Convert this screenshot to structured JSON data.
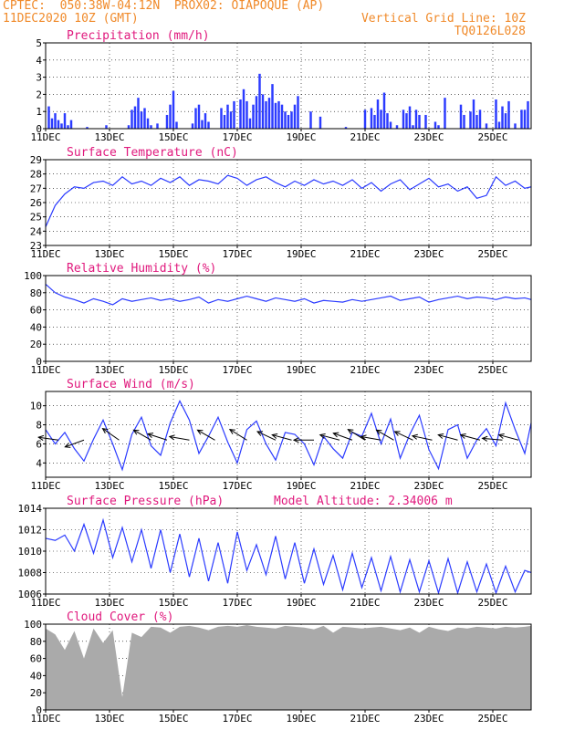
{
  "header": {
    "line1_left": "CPTEC:  050:38W-04:12N  PROX02: OIAPOQUE (AP)",
    "line2_left": "11DEC2020 10Z (GMT)",
    "line2_right": "Vertical Grid Line: 10Z",
    "line3_right": "TQ0126L028"
  },
  "colors": {
    "header": "#f08a2a",
    "titles": "#e0197d",
    "series": "#2b3bff",
    "precip_bars": "#2b3bff",
    "cloud_fill": "#aaaaaa",
    "arrows": "#000000"
  },
  "x_axis": {
    "labels": [
      "11DEC",
      "13DEC",
      "15DEC",
      "17DEC",
      "19DEC",
      "21DEC",
      "23DEC",
      "25DEC"
    ],
    "label_days": [
      0,
      2,
      4,
      6,
      8,
      10,
      12,
      14
    ],
    "range_days": [
      0,
      15.2
    ]
  },
  "chart_data": [
    {
      "type": "bar",
      "title": "Precipitation (mm/h)",
      "ylim": [
        0,
        5
      ],
      "yticks": [
        0,
        1,
        2,
        3,
        4,
        5
      ],
      "days": [
        0.1,
        0.2,
        0.3,
        0.4,
        0.5,
        0.6,
        0.7,
        0.8,
        1.3,
        1.9,
        2.6,
        2.7,
        2.8,
        2.9,
        3.0,
        3.1,
        3.2,
        3.3,
        3.5,
        3.8,
        3.9,
        4.0,
        4.1,
        4.6,
        4.7,
        4.8,
        4.9,
        5.0,
        5.1,
        5.5,
        5.6,
        5.7,
        5.8,
        5.9,
        6.1,
        6.2,
        6.3,
        6.4,
        6.5,
        6.6,
        6.7,
        6.8,
        6.9,
        7.0,
        7.1,
        7.2,
        7.3,
        7.4,
        7.5,
        7.6,
        7.7,
        7.8,
        7.9,
        8.3,
        8.6,
        9.4,
        10.0,
        10.2,
        10.3,
        10.4,
        10.5,
        10.6,
        10.7,
        10.8,
        11.0,
        11.2,
        11.3,
        11.4,
        11.5,
        11.6,
        11.7,
        11.9,
        12.2,
        12.3,
        12.5,
        13.0,
        13.1,
        13.3,
        13.4,
        13.5,
        13.6,
        13.8,
        14.1,
        14.2,
        14.3,
        14.4,
        14.5,
        14.7,
        14.9,
        15.0,
        15.1
      ],
      "values": [
        1.3,
        0.6,
        0.9,
        0.5,
        0.3,
        0.9,
        0.2,
        0.5,
        0.1,
        0.2,
        0.2,
        1.1,
        1.3,
        1.8,
        1.0,
        1.2,
        0.6,
        0.2,
        0.3,
        0.8,
        1.4,
        2.2,
        0.4,
        0.3,
        1.2,
        1.4,
        0.5,
        0.9,
        0.4,
        1.2,
        0.8,
        1.4,
        1.0,
        1.6,
        1.7,
        2.3,
        1.6,
        0.6,
        1.4,
        1.9,
        3.2,
        2.0,
        1.6,
        1.8,
        2.6,
        1.5,
        1.6,
        1.4,
        1.0,
        0.8,
        1.0,
        1.4,
        1.9,
        1.0,
        0.7,
        0.1,
        1.1,
        1.2,
        0.8,
        1.7,
        1.1,
        2.1,
        0.9,
        0.4,
        0.2,
        1.1,
        0.9,
        1.3,
        0.2,
        1.1,
        0.8,
        0.8,
        0.4,
        0.2,
        1.8,
        1.4,
        0.8,
        1.0,
        1.7,
        0.8,
        1.1,
        0.3,
        1.7,
        0.4,
        1.3,
        0.9,
        1.6,
        0.3,
        1.1,
        1.1,
        1.6
      ]
    },
    {
      "type": "line",
      "title": "Surface Temperature (nC)",
      "ylim": [
        23,
        29
      ],
      "yticks": [
        23,
        24,
        25,
        26,
        27,
        28,
        29
      ],
      "x": [
        0,
        0.3,
        0.6,
        0.9,
        1.2,
        1.5,
        1.8,
        2.1,
        2.4,
        2.7,
        3.0,
        3.3,
        3.6,
        3.9,
        4.2,
        4.5,
        4.8,
        5.1,
        5.4,
        5.7,
        6.0,
        6.3,
        6.6,
        6.9,
        7.2,
        7.5,
        7.8,
        8.1,
        8.4,
        8.7,
        9.0,
        9.3,
        9.6,
        9.9,
        10.2,
        10.5,
        10.8,
        11.1,
        11.4,
        11.7,
        12.0,
        12.3,
        12.6,
        12.9,
        13.2,
        13.5,
        13.8,
        14.1,
        14.4,
        14.7,
        15.0,
        15.2
      ],
      "y": [
        24.3,
        25.8,
        26.6,
        27.1,
        27.0,
        27.4,
        27.5,
        27.2,
        27.8,
        27.3,
        27.5,
        27.2,
        27.7,
        27.4,
        27.8,
        27.2,
        27.6,
        27.5,
        27.3,
        27.9,
        27.7,
        27.2,
        27.6,
        27.8,
        27.4,
        27.1,
        27.5,
        27.2,
        27.6,
        27.3,
        27.5,
        27.2,
        27.6,
        27.0,
        27.4,
        26.8,
        27.3,
        27.6,
        26.9,
        27.3,
        27.7,
        27.1,
        27.3,
        26.8,
        27.1,
        26.3,
        26.5,
        27.8,
        27.2,
        27.5,
        27.0,
        27.1
      ]
    },
    {
      "type": "line",
      "title": "Relative Humidity (%)",
      "ylim": [
        0,
        100
      ],
      "yticks": [
        0,
        20,
        40,
        60,
        80,
        100
      ],
      "x": [
        0,
        0.3,
        0.6,
        0.9,
        1.2,
        1.5,
        1.8,
        2.1,
        2.4,
        2.7,
        3.0,
        3.3,
        3.6,
        3.9,
        4.2,
        4.5,
        4.8,
        5.1,
        5.4,
        5.7,
        6.0,
        6.3,
        6.6,
        6.9,
        7.2,
        7.5,
        7.8,
        8.1,
        8.4,
        8.7,
        9.0,
        9.3,
        9.6,
        9.9,
        10.2,
        10.5,
        10.8,
        11.1,
        11.4,
        11.7,
        12.0,
        12.3,
        12.6,
        12.9,
        13.2,
        13.5,
        13.8,
        14.1,
        14.4,
        14.7,
        15.0,
        15.2
      ],
      "y": [
        90,
        80,
        75,
        72,
        68,
        73,
        70,
        66,
        73,
        70,
        72,
        74,
        71,
        73,
        70,
        72,
        75,
        68,
        72,
        70,
        73,
        76,
        73,
        70,
        74,
        72,
        70,
        73,
        68,
        71,
        70,
        69,
        72,
        70,
        72,
        74,
        76,
        71,
        73,
        75,
        69,
        72,
        74,
        76,
        73,
        75,
        74,
        72,
        75,
        73,
        74,
        72
      ]
    },
    {
      "type": "line",
      "title": "Surface Wind (m/s)",
      "ylim": [
        2.5,
        11.5
      ],
      "yticks": [
        4,
        6,
        8,
        10
      ],
      "x": [
        0,
        0.3,
        0.6,
        0.9,
        1.2,
        1.5,
        1.8,
        2.1,
        2.4,
        2.7,
        3.0,
        3.3,
        3.6,
        3.9,
        4.2,
        4.5,
        4.8,
        5.1,
        5.4,
        5.7,
        6.0,
        6.3,
        6.6,
        6.9,
        7.2,
        7.5,
        7.8,
        8.1,
        8.4,
        8.7,
        9.0,
        9.3,
        9.6,
        9.9,
        10.2,
        10.5,
        10.8,
        11.1,
        11.4,
        11.7,
        12.0,
        12.3,
        12.6,
        12.9,
        13.2,
        13.5,
        13.8,
        14.1,
        14.4,
        14.7,
        15.0,
        15.2
      ],
      "y": [
        7.5,
        6.0,
        7.2,
        5.5,
        4.2,
        6.5,
        8.5,
        6.0,
        3.3,
        7.0,
        8.8,
        5.8,
        4.8,
        8.2,
        10.5,
        8.5,
        5.0,
        6.8,
        8.8,
        6.2,
        4.0,
        7.5,
        8.4,
        6.0,
        4.3,
        7.2,
        7.0,
        6.0,
        3.8,
        6.8,
        5.5,
        4.5,
        7.2,
        6.8,
        9.2,
        6.0,
        8.6,
        4.5,
        7.0,
        9.0,
        5.4,
        3.4,
        7.5,
        8.0,
        4.5,
        6.4,
        7.6,
        5.8,
        10.3,
        7.5,
        5.0,
        8.2
      ],
      "arrow_days": [
        0.4,
        1.2,
        2.3,
        3.3,
        3.8,
        4.5,
        5.3,
        6.3,
        7.2,
        7.7,
        8.4,
        9.2,
        9.6,
        10.0,
        10.5,
        10.9,
        11.5,
        12.1,
        12.9,
        13.6,
        14.3,
        14.8
      ],
      "arrow_dirs": [
        172,
        200,
        145,
        150,
        162,
        170,
        150,
        148,
        155,
        165,
        180,
        165,
        160,
        148,
        170,
        150,
        155,
        168,
        165,
        165,
        175,
        165
      ]
    },
    {
      "type": "line",
      "title": "Surface Pressure (hPa)",
      "annotation": "Model Altitude: 2.34006 m",
      "ylim": [
        1006,
        1014
      ],
      "yticks": [
        1006,
        1008,
        1010,
        1012,
        1014
      ],
      "x": [
        0,
        0.3,
        0.6,
        0.9,
        1.2,
        1.5,
        1.8,
        2.1,
        2.4,
        2.7,
        3.0,
        3.3,
        3.6,
        3.9,
        4.2,
        4.5,
        4.8,
        5.1,
        5.4,
        5.7,
        6.0,
        6.3,
        6.6,
        6.9,
        7.2,
        7.5,
        7.8,
        8.1,
        8.4,
        8.7,
        9.0,
        9.3,
        9.6,
        9.9,
        10.2,
        10.5,
        10.8,
        11.1,
        11.4,
        11.7,
        12.0,
        12.3,
        12.6,
        12.9,
        13.2,
        13.5,
        13.8,
        14.1,
        14.4,
        14.7,
        15.0,
        15.2
      ],
      "y": [
        1011.2,
        1011.0,
        1011.5,
        1010.0,
        1012.5,
        1009.8,
        1012.9,
        1009.4,
        1012.2,
        1009.0,
        1012.0,
        1008.4,
        1012.0,
        1008.0,
        1011.6,
        1007.6,
        1011.2,
        1007.2,
        1010.8,
        1007.0,
        1011.8,
        1008.2,
        1010.6,
        1007.8,
        1011.4,
        1007.4,
        1010.8,
        1007.0,
        1010.2,
        1006.9,
        1009.6,
        1006.4,
        1009.8,
        1006.6,
        1009.4,
        1006.3,
        1009.5,
        1006.2,
        1009.2,
        1006.2,
        1009.1,
        1006.1,
        1009.3,
        1006.1,
        1009.0,
        1006.2,
        1008.8,
        1006.1,
        1008.6,
        1006.2,
        1008.2,
        1008.0
      ]
    },
    {
      "type": "area",
      "title": "Cloud Cover (%)",
      "ylim": [
        0,
        100
      ],
      "yticks": [
        0,
        20,
        40,
        60,
        80,
        100
      ],
      "x": [
        0,
        0.3,
        0.6,
        0.9,
        1.2,
        1.5,
        1.8,
        2.1,
        2.4,
        2.7,
        3.0,
        3.3,
        3.6,
        3.9,
        4.2,
        4.5,
        4.8,
        5.1,
        5.4,
        5.7,
        6.0,
        6.3,
        6.6,
        6.9,
        7.2,
        7.5,
        7.8,
        8.1,
        8.4,
        8.7,
        9.0,
        9.3,
        9.6,
        9.9,
        10.2,
        10.5,
        10.8,
        11.1,
        11.4,
        11.7,
        12.0,
        12.3,
        12.6,
        12.9,
        13.2,
        13.5,
        13.8,
        14.1,
        14.4,
        14.7,
        15.0,
        15.2
      ],
      "y": [
        95,
        88,
        70,
        92,
        60,
        95,
        78,
        93,
        15,
        90,
        85,
        97,
        96,
        90,
        97,
        98,
        96,
        93,
        97,
        98,
        97,
        99,
        97,
        96,
        95,
        98,
        97,
        96,
        94,
        98,
        90,
        97,
        96,
        95,
        96,
        97,
        95,
        93,
        96,
        90,
        97,
        94,
        92,
        96,
        95,
        97,
        96,
        95,
        97,
        96,
        97,
        98
      ]
    }
  ]
}
